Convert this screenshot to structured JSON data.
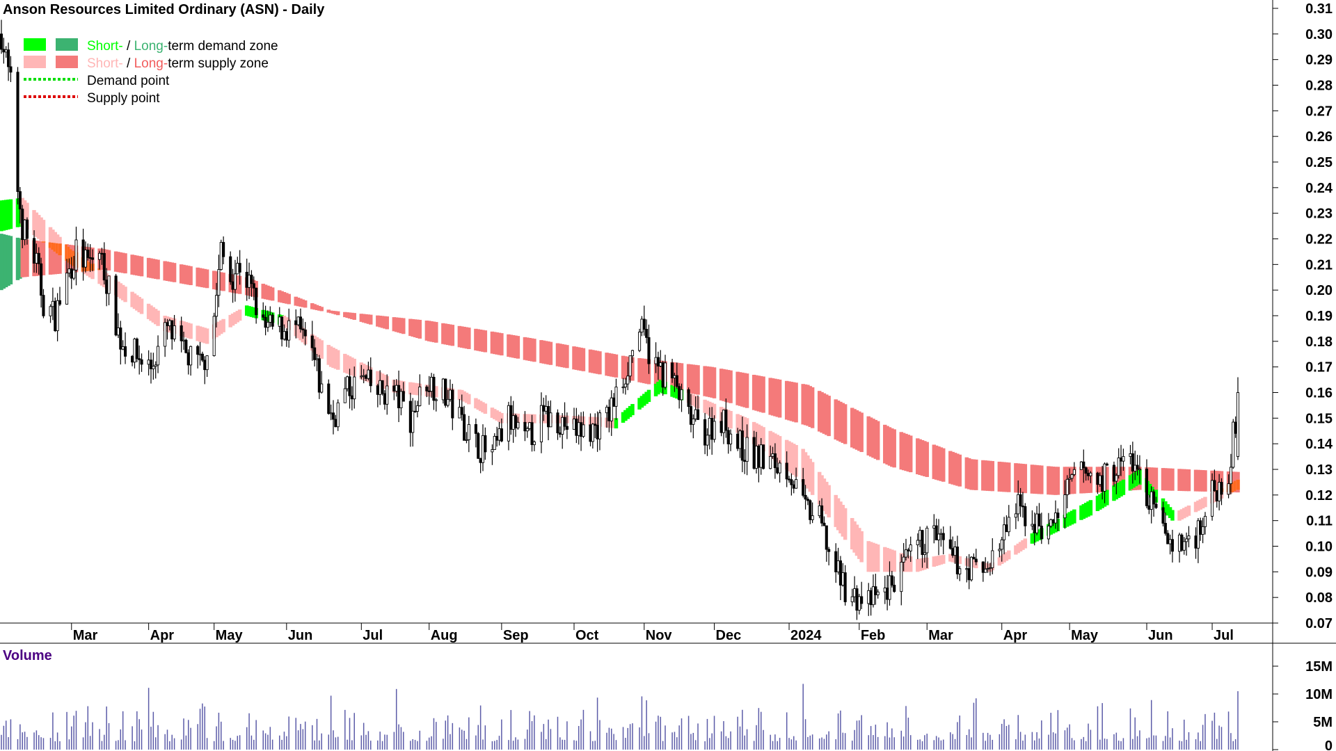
{
  "chart_data": {
    "type": "candlestick",
    "title": "Anson Resources Limited Ordinary (ASN) - Daily",
    "legend": {
      "placement": "top-left",
      "entries": [
        {
          "parts": [
            {
              "text": "Short-",
              "color": "#00ff00"
            },
            {
              "text": " / ",
              "color": "#000000"
            },
            {
              "text": "Long-",
              "color": "#3cb371"
            },
            {
              "text": "term demand zone",
              "color": "#000000"
            }
          ],
          "swatches": [
            "#00ff00",
            "#3cb371"
          ]
        },
        {
          "parts": [
            {
              "text": "Short-",
              "color": "#ffb6b6"
            },
            {
              "text": " / ",
              "color": "#000000"
            },
            {
              "text": "Long-",
              "color": "#f25c5c"
            },
            {
              "text": "term supply zone",
              "color": "#000000"
            }
          ],
          "swatches": [
            "#ffb6b6",
            "#f47a7a"
          ]
        },
        {
          "parts": [
            {
              "text": "Demand point",
              "color": "#000000"
            }
          ],
          "dotted": "#00dd00"
        },
        {
          "parts": [
            {
              "text": "Supply point",
              "color": "#000000"
            }
          ],
          "dotted": "#dd0000"
        }
      ]
    },
    "y_axis": {
      "min": 0.07,
      "max": 0.31,
      "ticks": [
        "0.07",
        "0.08",
        "0.09",
        "0.10",
        "0.11",
        "0.12",
        "0.13",
        "0.14",
        "0.15",
        "0.16",
        "0.17",
        "0.18",
        "0.19",
        "0.20",
        "0.21",
        "0.22",
        "0.23",
        "0.24",
        "0.25",
        "0.26",
        "0.27",
        "0.28",
        "0.29",
        "0.30",
        "0.31"
      ],
      "side": "right"
    },
    "x_axis": {
      "start": "2023-01-30",
      "end": "2024-07-12",
      "ticks": [
        {
          "label": "Mar",
          "date": "2023-03-01"
        },
        {
          "label": "Apr",
          "date": "2023-04-03"
        },
        {
          "label": "May",
          "date": "2023-05-01"
        },
        {
          "label": "Jun",
          "date": "2023-06-01"
        },
        {
          "label": "Jul",
          "date": "2023-07-03"
        },
        {
          "label": "Aug",
          "date": "2023-08-01"
        },
        {
          "label": "Sep",
          "date": "2023-09-01"
        },
        {
          "label": "Oct",
          "date": "2023-10-02"
        },
        {
          "label": "Nov",
          "date": "2023-11-01"
        },
        {
          "label": "Dec",
          "date": "2023-12-01"
        },
        {
          "label": "2024",
          "date": "2024-01-02"
        },
        {
          "label": "Feb",
          "date": "2024-02-01"
        },
        {
          "label": "Mar",
          "date": "2024-03-01"
        },
        {
          "label": "Apr",
          "date": "2024-04-02"
        },
        {
          "label": "May",
          "date": "2024-05-01"
        },
        {
          "label": "Jun",
          "date": "2024-06-03"
        },
        {
          "label": "Jul",
          "date": "2024-07-01"
        }
      ]
    },
    "price_path": [
      [
        "2023-01-30",
        0.3
      ],
      [
        "2023-02-03",
        0.28
      ],
      [
        "2023-02-06",
        0.24
      ],
      [
        "2023-02-08",
        0.225
      ],
      [
        "2023-02-14",
        0.21
      ],
      [
        "2023-02-17",
        0.195
      ],
      [
        "2023-02-22",
        0.19
      ],
      [
        "2023-02-27",
        0.205
      ],
      [
        "2023-03-03",
        0.215
      ],
      [
        "2023-03-08",
        0.21
      ],
      [
        "2023-03-13",
        0.215
      ],
      [
        "2023-03-17",
        0.2
      ],
      [
        "2023-03-22",
        0.18
      ],
      [
        "2023-03-28",
        0.175
      ],
      [
        "2023-04-04",
        0.17
      ],
      [
        "2023-04-11",
        0.185
      ],
      [
        "2023-04-18",
        0.175
      ],
      [
        "2023-04-26",
        0.17
      ],
      [
        "2023-05-01",
        0.19
      ],
      [
        "2023-05-04",
        0.215
      ],
      [
        "2023-05-08",
        0.205
      ],
      [
        "2023-05-12",
        0.21
      ],
      [
        "2023-05-17",
        0.2
      ],
      [
        "2023-05-22",
        0.185
      ],
      [
        "2023-05-29",
        0.185
      ],
      [
        "2023-06-05",
        0.185
      ],
      [
        "2023-06-12",
        0.175
      ],
      [
        "2023-06-16",
        0.16
      ],
      [
        "2023-06-21",
        0.15
      ],
      [
        "2023-06-26",
        0.16
      ],
      [
        "2023-07-03",
        0.165
      ],
      [
        "2023-07-10",
        0.16
      ],
      [
        "2023-07-17",
        0.16
      ],
      [
        "2023-07-24",
        0.15
      ],
      [
        "2023-07-31",
        0.165
      ],
      [
        "2023-08-07",
        0.16
      ],
      [
        "2023-08-14",
        0.15
      ],
      [
        "2023-08-21",
        0.14
      ],
      [
        "2023-08-28",
        0.135
      ],
      [
        "2023-09-04",
        0.15
      ],
      [
        "2023-09-11",
        0.14
      ],
      [
        "2023-09-18",
        0.15
      ],
      [
        "2023-09-25",
        0.15
      ],
      [
        "2023-10-02",
        0.145
      ],
      [
        "2023-10-09",
        0.145
      ],
      [
        "2023-10-16",
        0.15
      ],
      [
        "2023-10-23",
        0.165
      ],
      [
        "2023-10-30",
        0.185
      ],
      [
        "2023-11-06",
        0.17
      ],
      [
        "2023-11-13",
        0.165
      ],
      [
        "2023-11-20",
        0.15
      ],
      [
        "2023-11-27",
        0.145
      ],
      [
        "2023-12-04",
        0.15
      ],
      [
        "2023-12-11",
        0.14
      ],
      [
        "2023-12-18",
        0.135
      ],
      [
        "2024-01-02",
        0.13
      ],
      [
        "2024-01-08",
        0.115
      ],
      [
        "2024-01-15",
        0.11
      ],
      [
        "2024-01-22",
        0.09
      ],
      [
        "2024-01-29",
        0.08
      ],
      [
        "2024-02-05",
        0.078
      ],
      [
        "2024-02-12",
        0.082
      ],
      [
        "2024-02-19",
        0.09
      ],
      [
        "2024-02-26",
        0.1
      ],
      [
        "2024-03-04",
        0.105
      ],
      [
        "2024-03-11",
        0.095
      ],
      [
        "2024-03-18",
        0.092
      ],
      [
        "2024-03-25",
        0.09
      ],
      [
        "2024-04-01",
        0.1
      ],
      [
        "2024-04-08",
        0.115
      ],
      [
        "2024-04-15",
        0.11
      ],
      [
        "2024-04-22",
        0.105
      ],
      [
        "2024-04-29",
        0.12
      ],
      [
        "2024-05-06",
        0.13
      ],
      [
        "2024-05-13",
        0.125
      ],
      [
        "2024-05-20",
        0.13
      ],
      [
        "2024-05-27",
        0.135
      ],
      [
        "2024-06-03",
        0.12
      ],
      [
        "2024-06-10",
        0.105
      ],
      [
        "2024-06-17",
        0.1
      ],
      [
        "2024-06-24",
        0.105
      ],
      [
        "2024-07-01",
        0.12
      ],
      [
        "2024-07-08",
        0.13
      ],
      [
        "2024-07-12",
        0.155
      ]
    ],
    "zones": {
      "long_term": [
        [
          "2023-01-30",
          0.222,
          0.2,
          "demand"
        ],
        [
          "2023-02-08",
          0.22,
          0.205,
          "supply"
        ],
        [
          "2023-03-15",
          0.216,
          0.208,
          "supply"
        ],
        [
          "2023-05-15",
          0.205,
          0.198,
          "supply"
        ],
        [
          "2023-06-20",
          0.192,
          0.191,
          "supply"
        ],
        [
          "2023-08-01",
          0.188,
          0.18,
          "supply"
        ],
        [
          "2023-09-15",
          0.181,
          0.172,
          "supply"
        ],
        [
          "2023-10-25",
          0.174,
          0.165,
          "supply"
        ],
        [
          "2023-11-30",
          0.17,
          0.158,
          "supply"
        ],
        [
          "2024-01-10",
          0.163,
          0.147,
          "supply"
        ],
        [
          "2024-02-15",
          0.146,
          0.131,
          "supply"
        ],
        [
          "2024-03-20",
          0.134,
          0.122,
          "supply"
        ],
        [
          "2024-04-25",
          0.131,
          0.12,
          "supply"
        ],
        [
          "2024-05-31",
          0.131,
          0.122,
          "supply"
        ],
        [
          "2024-07-12",
          0.129,
          0.121,
          "supply"
        ]
      ],
      "short_term": [
        [
          "2023-01-30",
          0.235,
          0.223,
          "demand"
        ],
        [
          "2023-02-08",
          0.236,
          0.225,
          "supply"
        ],
        [
          "2023-03-01",
          0.216,
          0.21,
          "supply"
        ],
        [
          "2023-03-20",
          0.204,
          0.198,
          "supply"
        ],
        [
          "2023-04-10",
          0.19,
          0.184,
          "supply"
        ],
        [
          "2023-04-28",
          0.185,
          0.179,
          "supply"
        ],
        [
          "2023-05-15",
          0.194,
          0.19,
          "demand"
        ],
        [
          "2023-05-31",
          0.19,
          0.186,
          "supply"
        ],
        [
          "2023-06-20",
          0.178,
          0.17,
          "supply"
        ],
        [
          "2023-07-17",
          0.165,
          0.16,
          "supply"
        ],
        [
          "2023-08-15",
          0.161,
          0.157,
          "supply"
        ],
        [
          "2023-09-01",
          0.152,
          0.148,
          "supply"
        ],
        [
          "2023-09-29",
          0.151,
          0.148,
          "supply"
        ],
        [
          "2023-10-20",
          0.15,
          0.146,
          "demand"
        ],
        [
          "2023-11-08",
          0.165,
          0.16,
          "demand"
        ],
        [
          "2023-11-20",
          0.16,
          0.156,
          "supply"
        ],
        [
          "2023-12-15",
          0.15,
          0.142,
          "supply"
        ],
        [
          "2024-01-08",
          0.138,
          0.125,
          "supply"
        ],
        [
          "2024-02-05",
          0.102,
          0.09,
          "supply"
        ],
        [
          "2024-02-26",
          0.095,
          0.09,
          "supply"
        ],
        [
          "2024-03-11",
          0.097,
          0.094,
          "supply"
        ],
        [
          "2024-03-28",
          0.093,
          0.09,
          "supply"
        ],
        [
          "2024-04-15",
          0.105,
          0.101,
          "demand"
        ],
        [
          "2024-05-10",
          0.118,
          0.112,
          "demand"
        ],
        [
          "2024-05-31",
          0.13,
          0.124,
          "demand"
        ],
        [
          "2024-06-15",
          0.113,
          0.109,
          "supply"
        ],
        [
          "2024-07-12",
          0.126,
          0.122,
          "supply"
        ]
      ]
    },
    "volume": {
      "label": "Volume",
      "max": 16000000,
      "ticks": [
        "0",
        "5M",
        "10M",
        "15M"
      ],
      "tick_values": [
        0,
        5000000,
        10000000,
        15000000
      ],
      "last_value": 10500000
    },
    "colors": {
      "short_demand": "#00ff00",
      "long_demand": "#3cb371",
      "short_supply": "#ffb6b6",
      "long_supply": "#f47a7a",
      "overlap": "#ff6a20",
      "candle": "#000000",
      "volume_bar": "#5b5ba8",
      "volume_label": "#4b0082"
    }
  }
}
